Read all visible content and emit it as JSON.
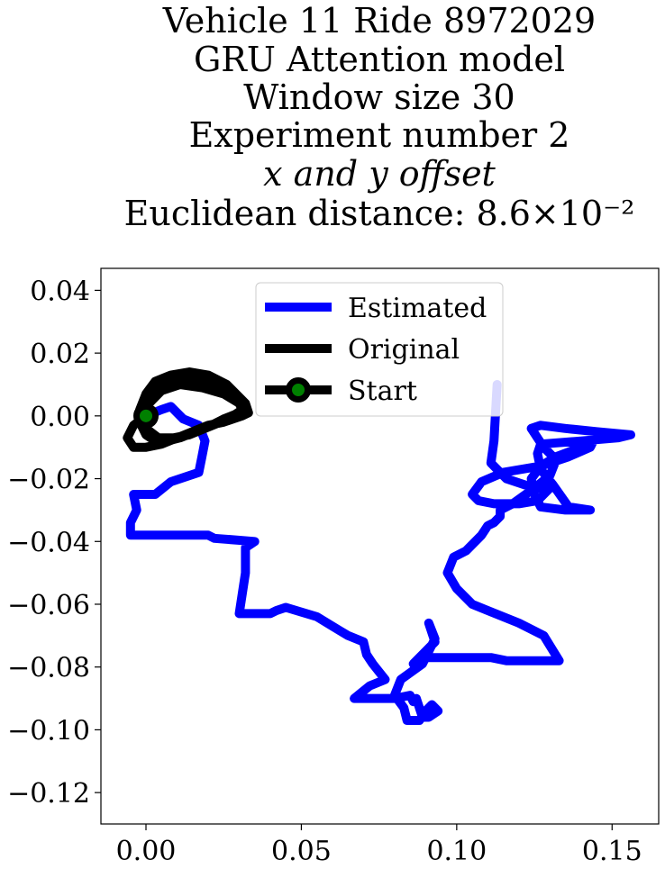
{
  "chart_data": {
    "type": "line",
    "title": [
      "Vehicle 11 Ride 8972029",
      "GRU Attention model",
      "Window size 30",
      "Experiment number 2",
      "x and y offset",
      "Euclidean distance: 8.6×10⁻²"
    ],
    "xlabel": "",
    "ylabel": "",
    "xlim": [
      -0.0145,
      0.165
    ],
    "ylim": [
      -0.13,
      0.047
    ],
    "grid": false,
    "legend_placement": "top-center",
    "xticks": [
      0.0,
      0.05,
      0.1,
      0.15
    ],
    "xtick_labels": [
      "0.00",
      "0.05",
      "0.10",
      "0.15"
    ],
    "yticks": [
      0.04,
      0.02,
      0.0,
      -0.02,
      -0.04,
      -0.06,
      -0.08,
      -0.1,
      -0.12
    ],
    "ytick_labels": [
      "0.04",
      "0.02",
      "0.00",
      "−0.02",
      "−0.04",
      "−0.06",
      "−0.08",
      "−0.10",
      "−0.12"
    ],
    "series": [
      {
        "name": "Estimated",
        "color": "#0000ff",
        "x": [
          0.0,
          0.005,
          0.008,
          0.012,
          0.017,
          0.019,
          0.018,
          0.017,
          0.008,
          0.003,
          -0.004,
          -0.003,
          -0.005,
          -0.005,
          0.005,
          0.02,
          0.022,
          0.035,
          0.032,
          0.032,
          0.03,
          0.032,
          0.04,
          0.042,
          0.045,
          0.055,
          0.06,
          0.065,
          0.07,
          0.071,
          0.073,
          0.077,
          0.072,
          0.067,
          0.07,
          0.08,
          0.085,
          0.086,
          0.087,
          0.089,
          0.091,
          0.094,
          0.092,
          0.09,
          0.088,
          0.084,
          0.083,
          0.08,
          0.082,
          0.089,
          0.093,
          0.091,
          0.093,
          0.086,
          0.088,
          0.097,
          0.1,
          0.105,
          0.111,
          0.116,
          0.122,
          0.133,
          0.128,
          0.12,
          0.11,
          0.105,
          0.1,
          0.097,
          0.099,
          0.103,
          0.108,
          0.11,
          0.112,
          0.114,
          0.114,
          0.118,
          0.125,
          0.13,
          0.132,
          0.128,
          0.124,
          0.127,
          0.135,
          0.145,
          0.156,
          0.152,
          0.14,
          0.127,
          0.126,
          0.127,
          0.131,
          0.136,
          0.143,
          0.135,
          0.127,
          0.125,
          0.124,
          0.127,
          0.132,
          0.14,
          0.144,
          0.143,
          0.136,
          0.127,
          0.115,
          0.108,
          0.105,
          0.107,
          0.112,
          0.12,
          0.126,
          0.128,
          0.13,
          0.125,
          0.116,
          0.111,
          0.112,
          0.113
        ],
        "y": [
          0.0,
          0.002,
          0.003,
          -0.001,
          -0.003,
          -0.008,
          -0.013,
          -0.018,
          -0.021,
          -0.025,
          -0.025,
          -0.03,
          -0.034,
          -0.038,
          -0.038,
          -0.038,
          -0.039,
          -0.04,
          -0.042,
          -0.05,
          -0.063,
          -0.063,
          -0.063,
          -0.062,
          -0.061,
          -0.064,
          -0.067,
          -0.07,
          -0.072,
          -0.076,
          -0.079,
          -0.084,
          -0.086,
          -0.09,
          -0.09,
          -0.09,
          -0.089,
          -0.091,
          -0.09,
          -0.096,
          -0.096,
          -0.094,
          -0.092,
          -0.094,
          -0.097,
          -0.097,
          -0.093,
          -0.089,
          -0.084,
          -0.079,
          -0.071,
          -0.066,
          -0.072,
          -0.079,
          -0.077,
          -0.077,
          -0.077,
          -0.077,
          -0.077,
          -0.078,
          -0.078,
          -0.078,
          -0.07,
          -0.066,
          -0.062,
          -0.06,
          -0.055,
          -0.05,
          -0.045,
          -0.043,
          -0.038,
          -0.035,
          -0.034,
          -0.032,
          -0.03,
          -0.028,
          -0.023,
          -0.019,
          -0.014,
          -0.01,
          -0.004,
          -0.003,
          -0.004,
          -0.005,
          -0.006,
          -0.007,
          -0.008,
          -0.009,
          -0.012,
          -0.017,
          -0.022,
          -0.029,
          -0.03,
          -0.03,
          -0.029,
          -0.025,
          -0.02,
          -0.016,
          -0.013,
          -0.01,
          -0.008,
          -0.01,
          -0.013,
          -0.016,
          -0.018,
          -0.021,
          -0.025,
          -0.027,
          -0.028,
          -0.028,
          -0.027,
          -0.025,
          -0.023,
          -0.023,
          -0.02,
          -0.015,
          -0.008,
          0.01
        ]
      },
      {
        "name": "Original",
        "color": "#000000",
        "x": [
          0.0,
          -0.004,
          -0.006,
          -0.004,
          0.0,
          0.005,
          0.01,
          0.015,
          0.02,
          0.025,
          0.028,
          0.031,
          0.033,
          0.032,
          0.029,
          0.026,
          0.02,
          0.014,
          0.008,
          0.003,
          0.0,
          -0.002,
          -0.002,
          0.0,
          0.003,
          0.007,
          0.011,
          0.016,
          0.021,
          0.025,
          0.03,
          0.032,
          0.031,
          0.025,
          0.018,
          0.012,
          0.006,
          0.002,
          -0.001,
          -0.002,
          0.0,
          0.004,
          0.009,
          0.014,
          0.019,
          0.024,
          0.028,
          0.031,
          0.03,
          0.025,
          0.018,
          0.011,
          0.005,
          0.001,
          0.0
        ],
        "y": [
          0.0,
          -0.003,
          -0.007,
          -0.01,
          -0.01,
          -0.009,
          -0.007,
          -0.005,
          -0.003,
          -0.002,
          -0.001,
          0.0,
          0.001,
          0.004,
          0.007,
          0.01,
          0.013,
          0.014,
          0.013,
          0.011,
          0.007,
          0.002,
          -0.002,
          -0.006,
          -0.008,
          -0.008,
          -0.007,
          -0.005,
          -0.003,
          -0.001,
          0.001,
          0.002,
          0.005,
          0.008,
          0.011,
          0.012,
          0.011,
          0.008,
          0.004,
          0.0,
          -0.004,
          -0.007,
          -0.007,
          -0.006,
          -0.004,
          -0.002,
          0.0,
          0.002,
          0.004,
          0.007,
          0.009,
          0.01,
          0.008,
          0.004,
          0.0
        ]
      },
      {
        "name": "Start",
        "color": "#000000",
        "marker_color": "#008000",
        "x": [
          0.0
        ],
        "y": [
          0.0
        ]
      }
    ]
  }
}
